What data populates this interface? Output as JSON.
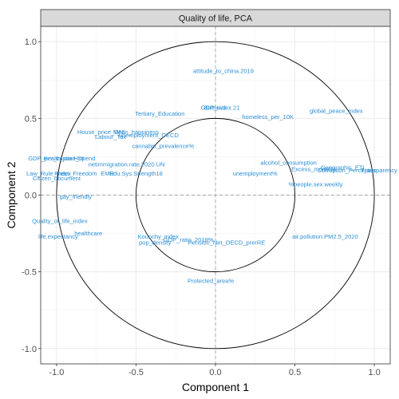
{
  "chart_data": {
    "type": "scatter",
    "title": "Quality of life, PCA",
    "xlabel": "Component  1",
    "ylabel": "Component  2",
    "xlim": [
      -1.1,
      1.1
    ],
    "ylim": [
      -1.1,
      1.1
    ],
    "x_ticks": [
      -1.0,
      -0.5,
      0.0,
      0.5,
      1.0
    ],
    "y_ticks": [
      -1.0,
      -0.5,
      0.0,
      0.5,
      1.0
    ],
    "x_tick_labels": [
      "-1.0",
      "-0.5",
      "0.0",
      "0.5",
      "1.0"
    ],
    "y_tick_labels": [
      "-1.0",
      "-0.5",
      "0.0",
      "0.5",
      "1.0"
    ],
    "grid": true,
    "reference_lines": {
      "x": 0,
      "y": 0,
      "style": "dashed"
    },
    "circles": [
      {
        "radius": 1.0
      },
      {
        "radius": 0.5
      }
    ],
    "colors": {
      "labels": "#2c8fd6",
      "strip": "#d9d9d9",
      "grid": "#ebebeb",
      "circle": "#000000",
      "refline": "#a6a6a6"
    },
    "points": [
      {
        "label": "attitude_to_china.2019",
        "x": 0.05,
        "y": 0.81
      },
      {
        "label": "Tertiary_Education",
        "x": -0.35,
        "y": 0.53
      },
      {
        "label": "GDP_index.21",
        "x": 0.03,
        "y": 0.57
      },
      {
        "label": "Birthrate",
        "x": 0.0,
        "y": 0.57
      },
      {
        "label": "global_peace_index",
        "x": 0.76,
        "y": 0.55
      },
      {
        "label": "homeless_per_10K",
        "x": 0.33,
        "y": 0.51
      },
      {
        "label": "House_price_GNI",
        "x": -0.72,
        "y": 0.41
      },
      {
        "label": "Mean_happiness",
        "x": -0.5,
        "y": 0.41
      },
      {
        "label": "unemployment_OECD",
        "x": -0.42,
        "y": 0.39
      },
      {
        "label": "Labour_Tax",
        "x": -0.66,
        "y": 0.38
      },
      {
        "label": "cannabis_prevalence%",
        "x": -0.33,
        "y": 0.32
      },
      {
        "label": "GDP_per_capita",
        "x": -1.04,
        "y": 0.24
      },
      {
        "label": "Health_care_spend",
        "x": -0.92,
        "y": 0.24
      },
      {
        "label": "HDI",
        "x": -0.86,
        "y": 0.24
      },
      {
        "label": "netimmigration.rate.2020.UN",
        "x": -0.56,
        "y": 0.2
      },
      {
        "label": "alcohol_consumption",
        "x": 0.46,
        "y": 0.21
      },
      {
        "label": "Geographic_ETI",
        "x": 0.8,
        "y": 0.18
      },
      {
        "label": "Excess_mortality",
        "x": 0.62,
        "y": 0.17
      },
      {
        "label": "Corruption_Perception",
        "x": 0.83,
        "y": 0.16
      },
      {
        "label": "Transparency",
        "x": 1.03,
        "y": 0.16
      },
      {
        "label": "unemployment%",
        "x": 0.25,
        "y": 0.14
      },
      {
        "label": "Law_Rule_Index",
        "x": -1.05,
        "y": 0.14
      },
      {
        "label": "Press_Freedom",
        "x": -0.88,
        "y": 0.14
      },
      {
        "label": "EMR",
        "x": -0.68,
        "y": 0.14
      },
      {
        "label": "Edu.Sys.Strength18",
        "x": -0.5,
        "y": 0.14
      },
      {
        "label": "%people.sex.weekly",
        "x": 0.63,
        "y": 0.07
      },
      {
        "label": "Citizen_document",
        "x": -1.0,
        "y": 0.11
      },
      {
        "label": "gay_friendly",
        "x": -0.88,
        "y": -0.01
      },
      {
        "label": "Quality_of_life_index",
        "x": -0.98,
        "y": -0.17
      },
      {
        "label": "healthcare",
        "x": -0.8,
        "y": -0.25
      },
      {
        "label": "life.expectancy",
        "x": -0.99,
        "y": -0.27
      },
      {
        "label": "Kounchy_index",
        "x": -0.36,
        "y": -0.27
      },
      {
        "label": "GDP_ratio_2018%",
        "x": -0.17,
        "y": -0.29
      },
      {
        "label": "pop_density",
        "x": -0.38,
        "y": -0.31
      },
      {
        "label": "Pension_Net_OECD_prerRE",
        "x": 0.07,
        "y": -0.31
      },
      {
        "label": "air.pollution.PM2.5_2020",
        "x": 0.69,
        "y": -0.27
      },
      {
        "label": "Protected_area%",
        "x": -0.03,
        "y": -0.56
      }
    ]
  }
}
